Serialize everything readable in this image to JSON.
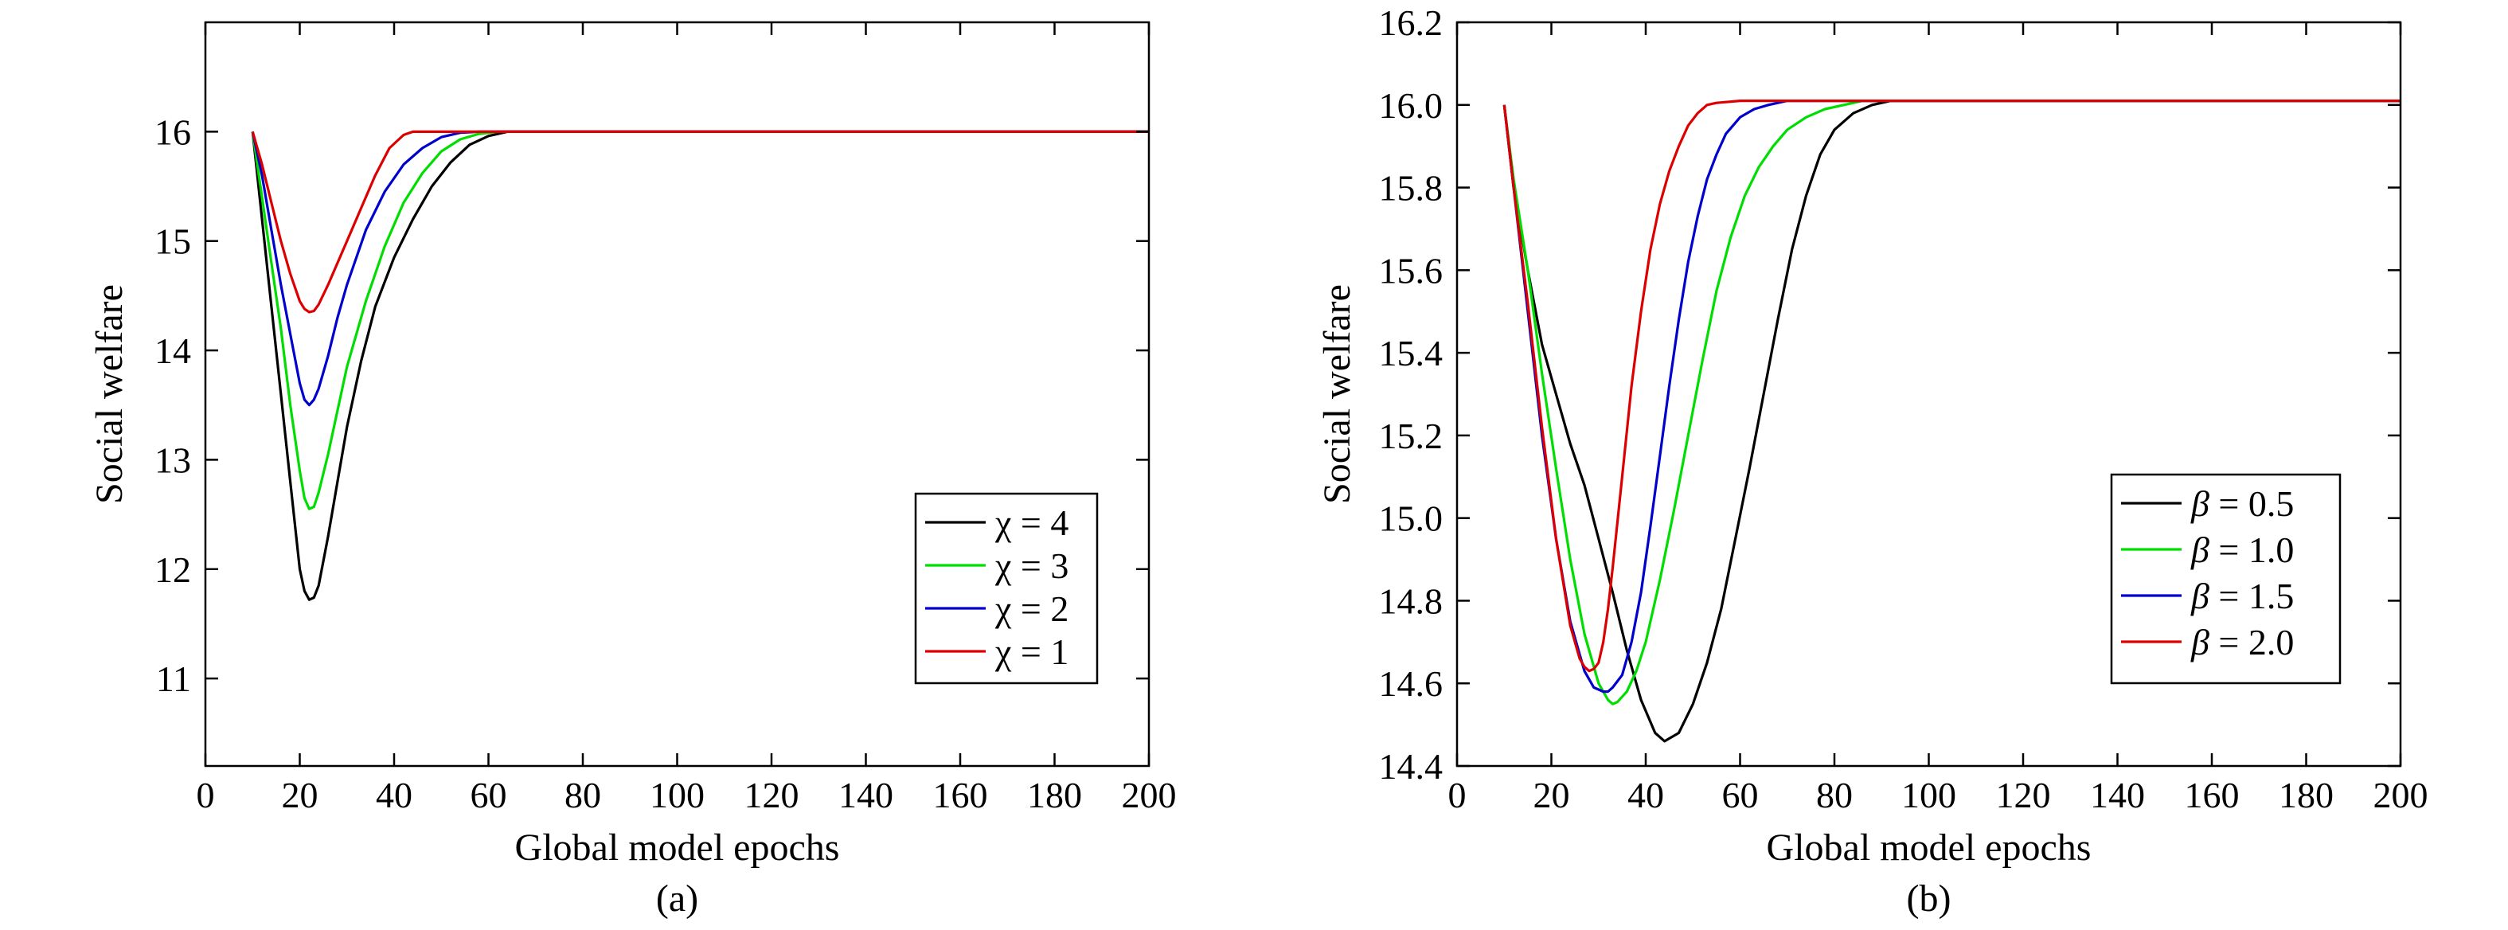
{
  "chart_data": [
    {
      "type": "line",
      "caption": "(a)",
      "xlabel": "Global model epochs",
      "ylabel": "Social welfare",
      "xlim": [
        0,
        200
      ],
      "ylim": [
        10.2,
        17
      ],
      "xticks": [
        0,
        20,
        40,
        60,
        80,
        100,
        120,
        140,
        160,
        180,
        200
      ],
      "yticks": [
        11,
        12,
        13,
        14,
        15,
        16
      ],
      "ytick_decimals": 0,
      "legend_position": "lower-right",
      "legend_italic": false,
      "series": [
        {
          "name": "χ = 4",
          "color": "#000000",
          "x": [
            10,
            12,
            14,
            16,
            18,
            20,
            21,
            22,
            23,
            24,
            26,
            28,
            30,
            33,
            36,
            40,
            44,
            48,
            52,
            56,
            60,
            64,
            70,
            100,
            200
          ],
          "y": [
            16.0,
            15.2,
            14.4,
            13.6,
            12.8,
            12.0,
            11.8,
            11.72,
            11.74,
            11.85,
            12.3,
            12.8,
            13.3,
            13.9,
            14.4,
            14.85,
            15.2,
            15.5,
            15.72,
            15.88,
            15.96,
            16.0,
            16.0,
            16.0,
            16.0
          ]
        },
        {
          "name": "χ = 3",
          "color": "#00dd00",
          "x": [
            10,
            12,
            14,
            16,
            18,
            20,
            21,
            22,
            23,
            24,
            26,
            28,
            30,
            34,
            38,
            42,
            46,
            50,
            54,
            58,
            62,
            70,
            100,
            200
          ],
          "y": [
            16.0,
            15.4,
            14.8,
            14.2,
            13.5,
            12.9,
            12.65,
            12.55,
            12.57,
            12.7,
            13.05,
            13.45,
            13.85,
            14.45,
            14.95,
            15.35,
            15.62,
            15.82,
            15.93,
            15.98,
            16.0,
            16.0,
            16.0,
            16.0
          ]
        },
        {
          "name": "χ = 2",
          "color": "#0000cc",
          "x": [
            10,
            12,
            14,
            16,
            18,
            20,
            21,
            22,
            23,
            24,
            26,
            28,
            30,
            34,
            38,
            42,
            46,
            50,
            54,
            58,
            70,
            100,
            200
          ],
          "y": [
            16.0,
            15.6,
            15.1,
            14.6,
            14.15,
            13.7,
            13.55,
            13.5,
            13.55,
            13.65,
            13.95,
            14.3,
            14.6,
            15.1,
            15.45,
            15.7,
            15.85,
            15.95,
            15.99,
            16.0,
            16.0,
            16.0,
            16.0
          ]
        },
        {
          "name": "χ = 1",
          "color": "#dd0000",
          "x": [
            10,
            12,
            14,
            16,
            18,
            20,
            21,
            22,
            23,
            24,
            26,
            28,
            30,
            33,
            36,
            39,
            42,
            44,
            46,
            50,
            100,
            200
          ],
          "y": [
            16.0,
            15.7,
            15.35,
            15.0,
            14.7,
            14.45,
            14.38,
            14.35,
            14.36,
            14.42,
            14.6,
            14.8,
            15.0,
            15.3,
            15.6,
            15.85,
            15.97,
            16.0,
            16.0,
            16.0,
            16.0,
            16.0
          ]
        }
      ]
    },
    {
      "type": "line",
      "caption": "(b)",
      "xlabel": "Global model epochs",
      "ylabel": "Social welfare",
      "xlim": [
        0,
        200
      ],
      "ylim": [
        14.4,
        16.2
      ],
      "xticks": [
        0,
        20,
        40,
        60,
        80,
        100,
        120,
        140,
        160,
        180,
        200
      ],
      "yticks": [
        14.4,
        14.6,
        14.8,
        15.0,
        15.2,
        15.4,
        15.6,
        15.8,
        16.0,
        16.2
      ],
      "ytick_decimals": 1,
      "legend_position": "lower-right",
      "legend_italic": true,
      "series": [
        {
          "name": "β = 0.5",
          "color": "#000000",
          "x": [
            10,
            12,
            15,
            18,
            21,
            24,
            27,
            30,
            33,
            36,
            39,
            42,
            44,
            47,
            50,
            53,
            56,
            59,
            62,
            65,
            68,
            71,
            74,
            77,
            80,
            84,
            88,
            92,
            95,
            100,
            200
          ],
          "y": [
            16.0,
            15.8,
            15.6,
            15.42,
            15.3,
            15.18,
            15.08,
            14.95,
            14.82,
            14.68,
            14.56,
            14.48,
            14.46,
            14.48,
            14.55,
            14.65,
            14.78,
            14.95,
            15.12,
            15.3,
            15.48,
            15.65,
            15.78,
            15.88,
            15.94,
            15.98,
            16.0,
            16.01,
            16.01,
            16.01,
            16.01
          ]
        },
        {
          "name": "β = 1.0",
          "color": "#00dd00",
          "x": [
            10,
            12,
            15,
            18,
            21,
            24,
            27,
            30,
            32,
            33,
            34,
            36,
            38,
            40,
            43,
            46,
            49,
            52,
            55,
            58,
            61,
            64,
            67,
            70,
            74,
            78,
            82,
            86,
            100,
            200
          ],
          "y": [
            16.0,
            15.82,
            15.6,
            15.35,
            15.12,
            14.9,
            14.72,
            14.6,
            14.56,
            14.55,
            14.555,
            14.58,
            14.63,
            14.7,
            14.85,
            15.02,
            15.2,
            15.38,
            15.55,
            15.68,
            15.78,
            15.85,
            15.9,
            15.94,
            15.97,
            15.99,
            16.0,
            16.01,
            16.01,
            16.01
          ]
        },
        {
          "name": "β = 1.5",
          "color": "#0000cc",
          "x": [
            10,
            12,
            15,
            18,
            21,
            24,
            27,
            29,
            31,
            32,
            33,
            35,
            37,
            39,
            41,
            43,
            45,
            47,
            49,
            51,
            53,
            55,
            57,
            60,
            63,
            66,
            70,
            100,
            200
          ],
          "y": [
            16.0,
            15.8,
            15.5,
            15.2,
            14.95,
            14.75,
            14.63,
            14.59,
            14.58,
            14.58,
            14.59,
            14.62,
            14.7,
            14.82,
            14.98,
            15.15,
            15.32,
            15.48,
            15.62,
            15.73,
            15.82,
            15.88,
            15.93,
            15.97,
            15.99,
            16.0,
            16.01,
            16.01,
            16.01
          ]
        },
        {
          "name": "β = 2.0",
          "color": "#dd0000",
          "x": [
            10,
            12,
            15,
            18,
            21,
            24,
            26,
            27,
            28,
            29,
            30,
            31,
            32,
            33,
            35,
            37,
            39,
            41,
            43,
            45,
            47,
            49,
            51,
            53,
            55,
            60,
            100,
            200
          ],
          "y": [
            16.0,
            15.8,
            15.52,
            15.22,
            14.95,
            14.74,
            14.66,
            14.64,
            14.63,
            14.635,
            14.65,
            14.7,
            14.78,
            14.88,
            15.1,
            15.32,
            15.5,
            15.65,
            15.76,
            15.84,
            15.9,
            15.95,
            15.98,
            16.0,
            16.005,
            16.01,
            16.01,
            16.01
          ]
        }
      ]
    }
  ]
}
